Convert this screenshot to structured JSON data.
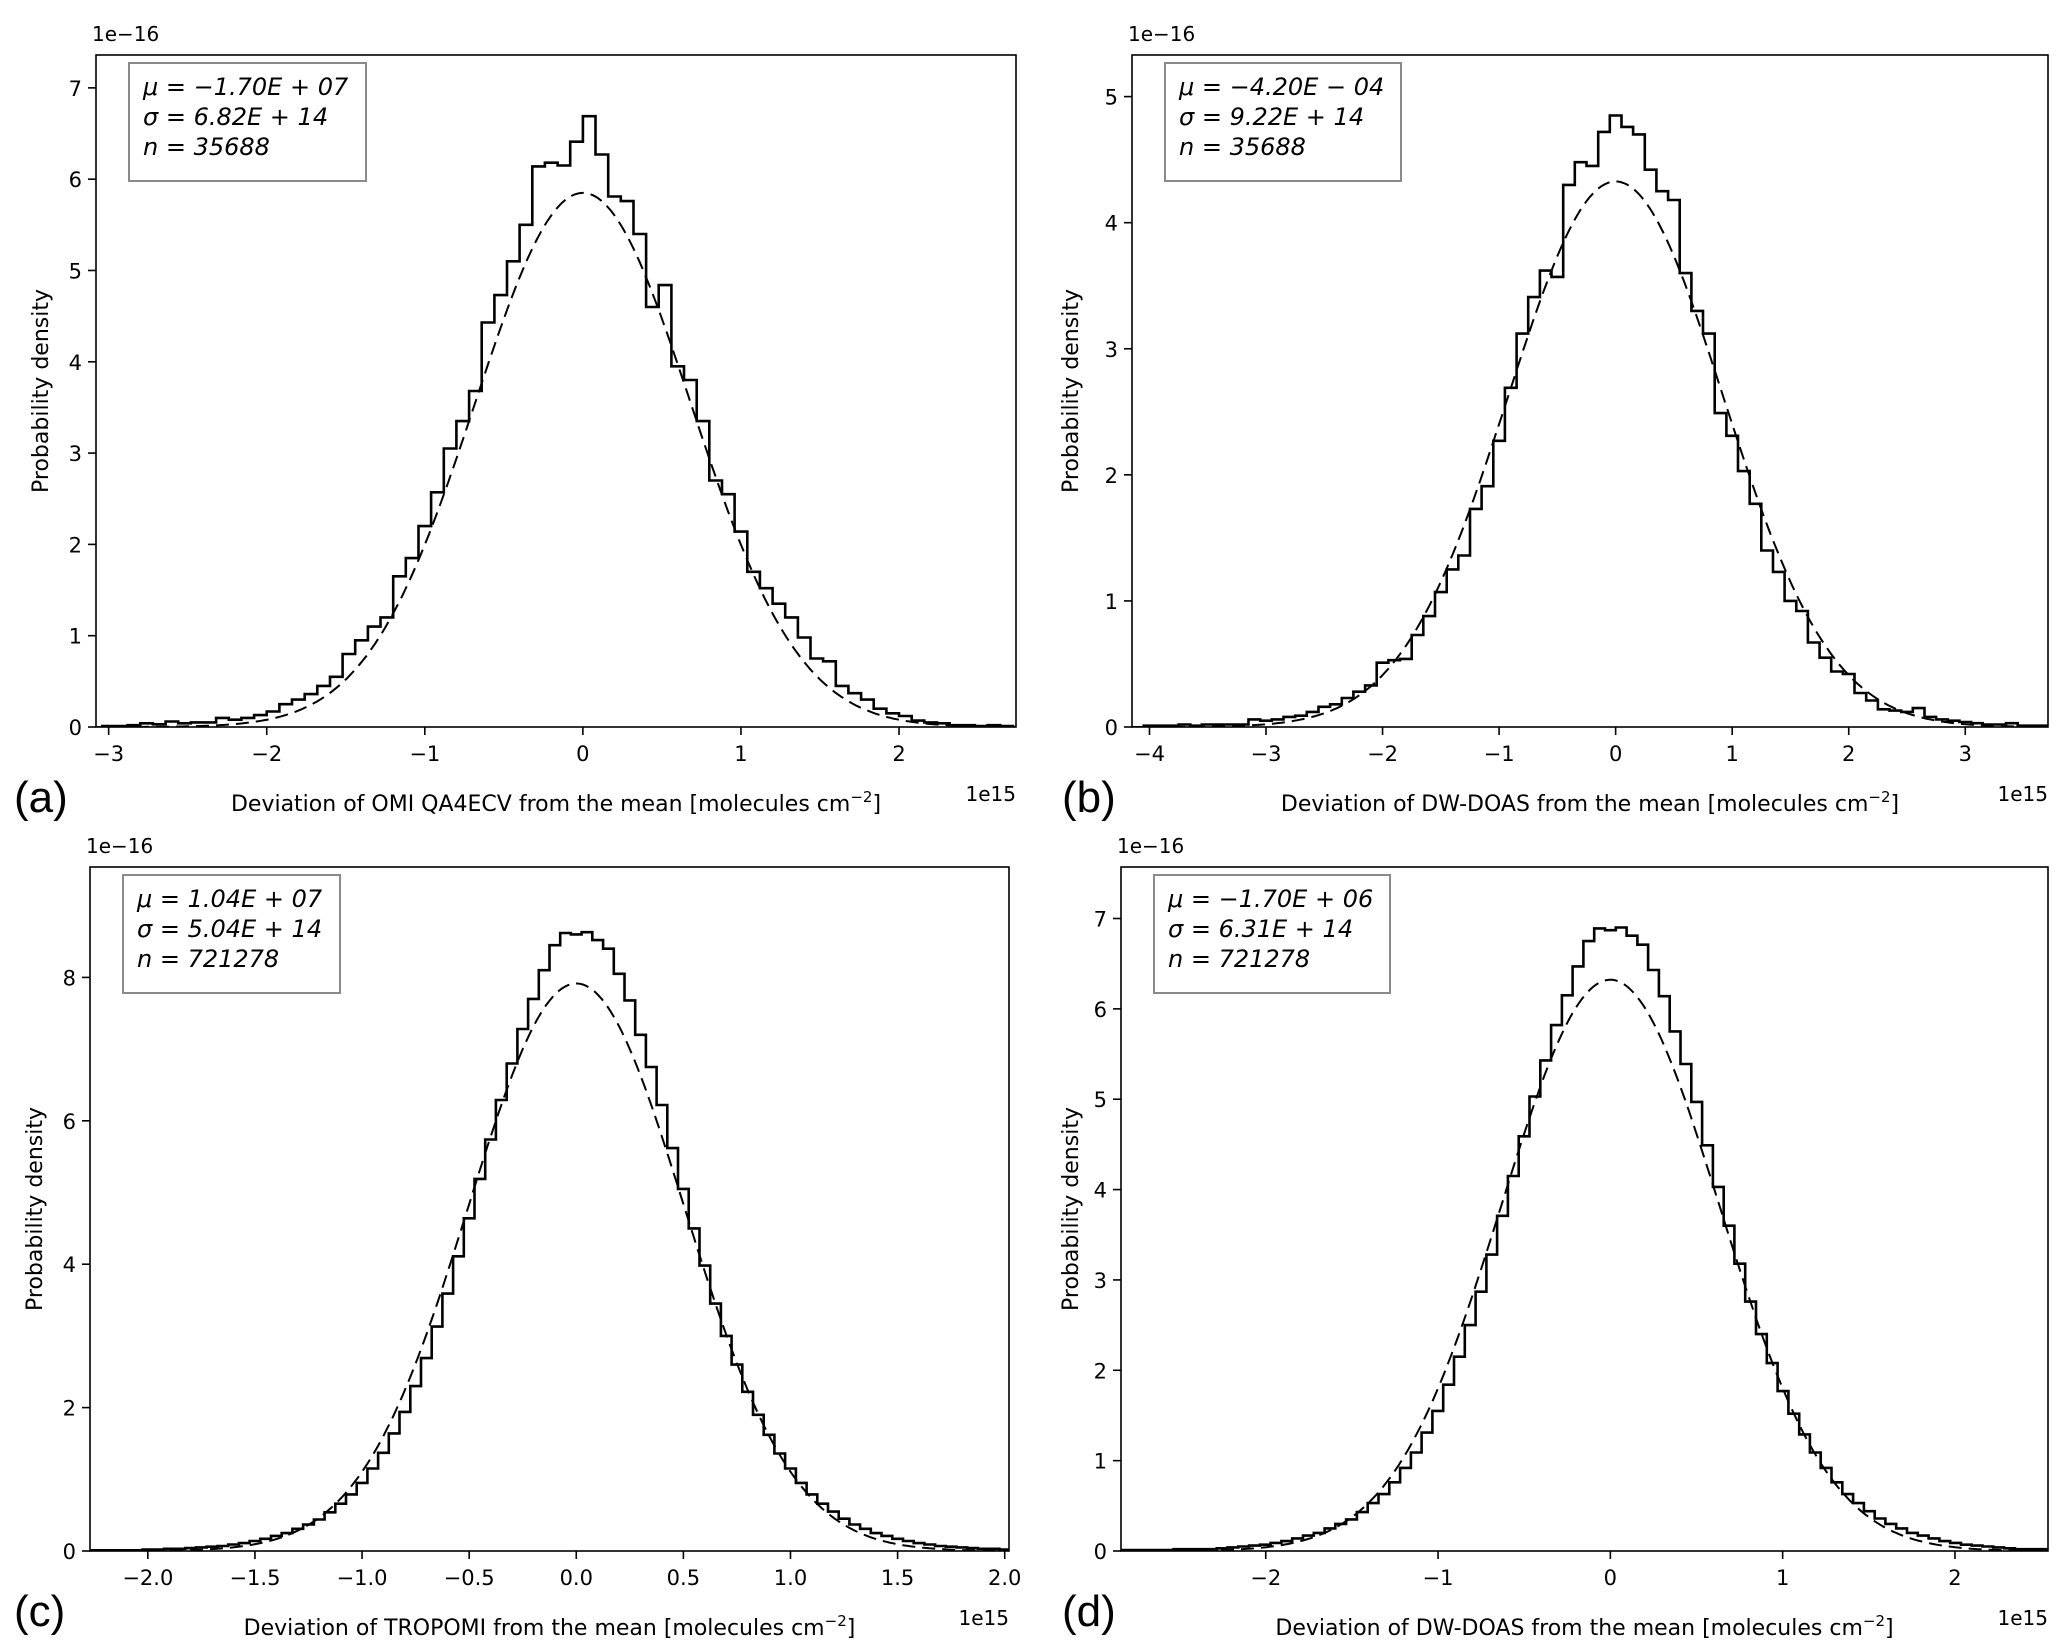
{
  "chart_data": [
    {
      "type": "histogram",
      "panel_label": "(a)",
      "xlabel": {
        "pre": "Deviation of OMI QA4ECV from the mean [molecules cm",
        "sup": "−2",
        "post": "]"
      },
      "ylabel": "Probability density",
      "x_offset_label": "1e15",
      "y_offset_label": "1e−16",
      "xlim": [
        -3.08,
        2.74
      ],
      "ylim": [
        0,
        7.36
      ],
      "xticks": [
        -3,
        -2,
        -1,
        0,
        1,
        2
      ],
      "xtick_labels": [
        "−3",
        "−2",
        "−1",
        "0",
        "1",
        "2"
      ],
      "yticks": [
        0,
        1,
        2,
        3,
        4,
        5,
        6,
        7
      ],
      "ytick_labels": [
        "0",
        "1",
        "2",
        "3",
        "4",
        "5",
        "6",
        "7"
      ],
      "stats": [
        "μ = −1.70E + 07",
        "σ = 6.82E + 14",
        "n = 35688"
      ],
      "fit": {
        "mean": 0,
        "sigma": 0.682
      },
      "bins": {
        "start": -3.04,
        "width": 0.08,
        "values": [
          0.01,
          0.01,
          0.02,
          0.04,
          0.03,
          0.06,
          0.04,
          0.05,
          0.05,
          0.1,
          0.08,
          0.1,
          0.13,
          0.17,
          0.25,
          0.3,
          0.36,
          0.45,
          0.55,
          0.8,
          0.95,
          1.1,
          1.2,
          1.65,
          1.85,
          2.2,
          2.57,
          3.05,
          3.35,
          3.68,
          4.43,
          4.73,
          5.1,
          5.5,
          6.14,
          6.18,
          6.15,
          6.41,
          6.69,
          6.27,
          5.81,
          5.76,
          5.4,
          4.6,
          4.84,
          3.95,
          3.8,
          3.35,
          2.7,
          2.55,
          2.14,
          1.7,
          1.52,
          1.35,
          1.2,
          0.98,
          0.75,
          0.72,
          0.45,
          0.37,
          0.3,
          0.2,
          0.15,
          0.12,
          0.07,
          0.05,
          0.04,
          0.02,
          0.02,
          0.01,
          0.02,
          0.01
        ]
      }
    },
    {
      "type": "histogram",
      "panel_label": "(b)",
      "xlabel": {
        "pre": "Deviation of DW-DOAS from the mean [molecules cm",
        "sup": "−2",
        "post": "]"
      },
      "ylabel": "Probability density",
      "x_offset_label": "1e15",
      "y_offset_label": "1e−16",
      "xlim": [
        -4.15,
        3.71
      ],
      "ylim": [
        0,
        5.33
      ],
      "xticks": [
        -4,
        -3,
        -2,
        -1,
        0,
        1,
        2,
        3
      ],
      "xtick_labels": [
        "−4",
        "−3",
        "−2",
        "−1",
        "0",
        "1",
        "2",
        "3"
      ],
      "yticks": [
        0,
        1,
        2,
        3,
        4,
        5
      ],
      "ytick_labels": [
        "0",
        "1",
        "2",
        "3",
        "4",
        "5"
      ],
      "stats": [
        "μ = −4.20E − 04",
        "σ = 9.22E + 14",
        "n = 35688"
      ],
      "fit": {
        "mean": 0,
        "sigma": 0.922
      },
      "bins": {
        "start": -4.05,
        "width": 0.1,
        "values": [
          0.01,
          0.01,
          0.01,
          0.02,
          0.01,
          0.02,
          0.02,
          0.02,
          0.02,
          0.06,
          0.05,
          0.06,
          0.08,
          0.09,
          0.12,
          0.16,
          0.18,
          0.23,
          0.28,
          0.33,
          0.51,
          0.53,
          0.54,
          0.73,
          0.88,
          1.07,
          1.25,
          1.36,
          1.73,
          1.91,
          2.27,
          2.69,
          3.12,
          3.41,
          3.62,
          3.57,
          4.3,
          4.48,
          4.45,
          4.72,
          4.85,
          4.76,
          4.7,
          4.42,
          4.25,
          4.18,
          3.6,
          3.3,
          3.12,
          2.49,
          2.31,
          2.03,
          1.77,
          1.4,
          1.23,
          1.0,
          0.92,
          0.67,
          0.55,
          0.44,
          0.42,
          0.27,
          0.21,
          0.14,
          0.13,
          0.12,
          0.15,
          0.08,
          0.06,
          0.05,
          0.04,
          0.03,
          0.02,
          0.02,
          0.03,
          0.01,
          0.01,
          0.01
        ]
      }
    },
    {
      "type": "histogram",
      "panel_label": "(c)",
      "xlabel": {
        "pre": "Deviation of TROPOMI from the mean [molecules cm",
        "sup": "−2",
        "post": "]"
      },
      "ylabel": "Probability density",
      "x_offset_label": "1e15",
      "y_offset_label": "1e−16",
      "xlim": [
        -2.27,
        2.02
      ],
      "ylim": [
        0,
        9.54
      ],
      "xticks": [
        -2.0,
        -1.5,
        -1.0,
        -0.5,
        0.0,
        0.5,
        1.0,
        1.5,
        2.0
      ],
      "xtick_labels": [
        "−2.0",
        "−1.5",
        "−1.0",
        "−0.5",
        "0.0",
        "0.5",
        "1.0",
        "1.5",
        "2.0"
      ],
      "yticks": [
        0,
        2,
        4,
        6,
        8
      ],
      "ytick_labels": [
        "0",
        "2",
        "4",
        "6",
        "8"
      ],
      "stats": [
        "μ = 1.04E + 07",
        "σ = 5.04E + 14",
        "n = 721278"
      ],
      "fit": {
        "mean": 0,
        "sigma": 0.504
      },
      "bins": {
        "start": -2.275,
        "width": 0.05,
        "values": [
          0.01,
          0.01,
          0.01,
          0.01,
          0.01,
          0.02,
          0.02,
          0.03,
          0.03,
          0.04,
          0.05,
          0.06,
          0.07,
          0.09,
          0.11,
          0.14,
          0.17,
          0.21,
          0.25,
          0.31,
          0.37,
          0.44,
          0.54,
          0.66,
          0.79,
          0.95,
          1.15,
          1.37,
          1.64,
          1.94,
          2.3,
          2.69,
          3.13,
          3.59,
          4.11,
          4.64,
          5.19,
          5.74,
          6.29,
          6.8,
          7.28,
          7.7,
          8.1,
          8.45,
          8.62,
          8.6,
          8.63,
          8.52,
          8.4,
          8.05,
          7.68,
          7.2,
          6.75,
          6.22,
          5.62,
          5.05,
          4.5,
          3.98,
          3.45,
          3.0,
          2.6,
          2.22,
          1.9,
          1.62,
          1.36,
          1.15,
          0.95,
          0.79,
          0.66,
          0.55,
          0.45,
          0.37,
          0.31,
          0.25,
          0.21,
          0.17,
          0.14,
          0.11,
          0.09,
          0.07,
          0.06,
          0.05,
          0.04,
          0.03,
          0.03,
          0.02
        ]
      }
    },
    {
      "type": "histogram",
      "panel_label": "(d)",
      "xlabel": {
        "pre": "Deviation of DW-DOAS from the mean [molecules cm",
        "sup": "−2",
        "post": "]"
      },
      "ylabel": "Probability density",
      "x_offset_label": "1e15",
      "y_offset_label": "1e−16",
      "xlim": [
        -2.84,
        2.54
      ],
      "ylim": [
        0,
        7.57
      ],
      "xticks": [
        -2,
        -1,
        0,
        1,
        2
      ],
      "xtick_labels": [
        "−2",
        "−1",
        "0",
        "1",
        "2"
      ],
      "yticks": [
        0,
        1,
        2,
        3,
        4,
        5,
        6,
        7
      ],
      "ytick_labels": [
        "0",
        "1",
        "2",
        "3",
        "4",
        "5",
        "6",
        "7"
      ],
      "stats": [
        "μ = −1.70E + 06",
        "σ = 6.31E + 14",
        "n = 721278"
      ],
      "fit": {
        "mean": 0,
        "sigma": 0.631
      },
      "bins": {
        "start": -2.848,
        "width": 0.0626,
        "values": [
          0.01,
          0.01,
          0.01,
          0.01,
          0.01,
          0.02,
          0.02,
          0.02,
          0.02,
          0.03,
          0.04,
          0.05,
          0.06,
          0.07,
          0.09,
          0.11,
          0.14,
          0.17,
          0.2,
          0.25,
          0.3,
          0.35,
          0.43,
          0.53,
          0.63,
          0.76,
          0.92,
          1.09,
          1.31,
          1.55,
          1.84,
          2.15,
          2.5,
          2.87,
          3.28,
          3.71,
          4.15,
          4.59,
          5.03,
          5.43,
          5.82,
          6.15,
          6.47,
          6.75,
          6.89,
          6.87,
          6.9,
          6.81,
          6.71,
          6.43,
          6.14,
          5.75,
          5.39,
          4.97,
          4.49,
          4.03,
          3.6,
          3.18,
          2.76,
          2.4,
          2.08,
          1.77,
          1.52,
          1.29,
          1.09,
          0.92,
          0.76,
          0.63,
          0.53,
          0.44,
          0.36,
          0.3,
          0.25,
          0.2,
          0.17,
          0.14,
          0.11,
          0.09,
          0.07,
          0.06,
          0.05,
          0.04,
          0.03,
          0.02,
          0.02,
          0.02
        ]
      }
    }
  ]
}
